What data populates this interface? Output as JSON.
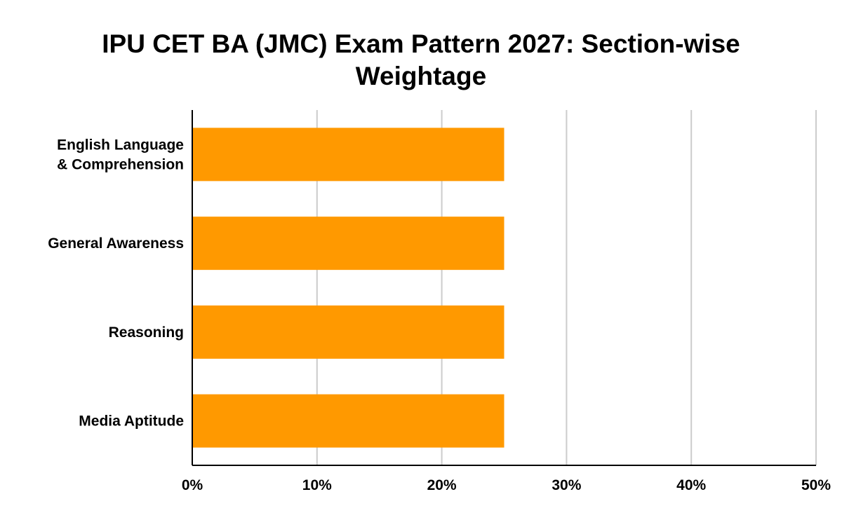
{
  "chart_data": {
    "type": "bar",
    "orientation": "horizontal",
    "title": "IPU CET BA (JMC) Exam Pattern 2027: Section-wise Weightage",
    "categories": [
      [
        "English Language",
        "& Comprehension"
      ],
      [
        "General Awareness"
      ],
      [
        "Reasoning"
      ],
      [
        "Media Aptitude"
      ]
    ],
    "values": [
      25,
      25,
      25,
      25
    ],
    "xlim": [
      0,
      50
    ],
    "xticks": [
      0,
      10,
      20,
      30,
      40,
      50
    ],
    "tick_format": "%",
    "grid": true,
    "legend": "none",
    "bar_color": "#FF9900",
    "grid_color": "#CCCCCC",
    "axis_color": "#000000"
  }
}
